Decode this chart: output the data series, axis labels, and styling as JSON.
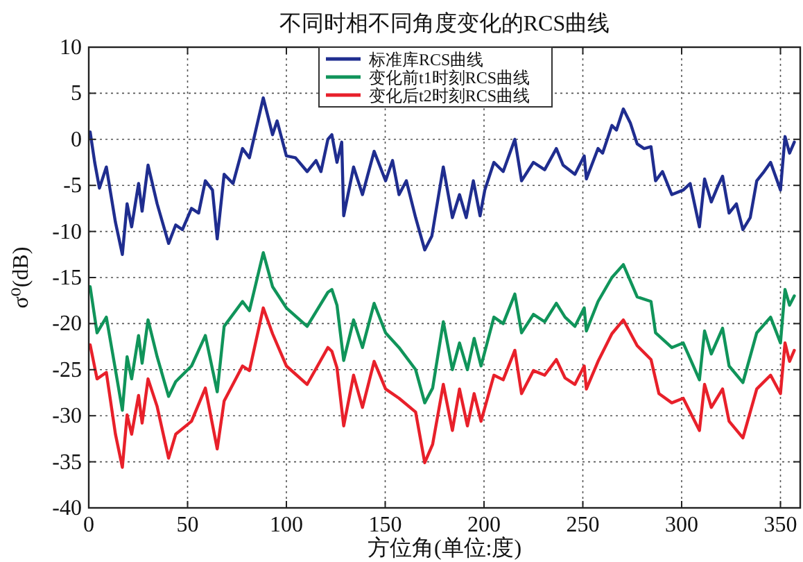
{
  "chart_data": {
    "type": "line",
    "title": "不同时相不同角度变化的RCS曲线",
    "xlabel": "方位角(单位:度)",
    "ylabel": "σ⁰(dB)",
    "xlim": [
      0,
      360
    ],
    "xticks": [
      0,
      50,
      100,
      150,
      200,
      250,
      300,
      350
    ],
    "ylim": [
      -40,
      10
    ],
    "yticks": [
      -40,
      -35,
      -30,
      -25,
      -20,
      -15,
      -10,
      -5,
      0,
      5,
      10
    ],
    "grid": true,
    "legend": "top",
    "line_style": "solid",
    "marker": "none",
    "series": [
      {
        "name": "标准库RCS曲线",
        "color": "#1f2d8f",
        "x": [
          0.7,
          3,
          5.4,
          8.9,
          13.5,
          17,
          19.4,
          21.7,
          25.2,
          27,
          30,
          34.6,
          40.4,
          44,
          47.4,
          52,
          55.6,
          59,
          62.6,
          65,
          68.5,
          73,
          77.8,
          81.3,
          88.3,
          93,
          95.3,
          100,
          104.6,
          110.5,
          115,
          117.5,
          121,
          123,
          125.6,
          128,
          129,
          134,
          138.5,
          141,
          144.4,
          150.2,
          153.7,
          157,
          160.7,
          165.4,
          170,
          173.6,
          179.4,
          184,
          187.6,
          191,
          194.6,
          198,
          200.4,
          205,
          209.7,
          215.6,
          219,
          225,
          230.7,
          236.6,
          240,
          246,
          250.7,
          251.8,
          257.7,
          260,
          264.7,
          267,
          270.5,
          274,
          277.5,
          281,
          284.5,
          286.8,
          290.3,
          295,
          300.8,
          304.3,
          309,
          311.6,
          315,
          318.5,
          320.7,
          324,
          327.7,
          331,
          334.7,
          338,
          341.7,
          345,
          350,
          352.3,
          354.6,
          357
        ],
        "values": [
          0.8,
          -2.5,
          -5.3,
          -3,
          -9,
          -12.5,
          -7,
          -9.5,
          -4.8,
          -7.8,
          -2.8,
          -7,
          -11.3,
          -9.3,
          -9.8,
          -7.5,
          -8,
          -4.5,
          -5.5,
          -10.8,
          -3.8,
          -4.8,
          -1,
          -2,
          4.5,
          0.5,
          2,
          -1.8,
          -2,
          -3.5,
          -2.3,
          -3.5,
          0,
          0.5,
          -2.5,
          -0.3,
          -8.3,
          -3,
          -6,
          -4,
          -1.3,
          -4.5,
          -2.3,
          -6,
          -4.5,
          -8.5,
          -12,
          -10.5,
          -3,
          -8.5,
          -6,
          -8.5,
          -4.5,
          -8.3,
          -5.5,
          -2.5,
          -3.5,
          0,
          -4.5,
          -2.5,
          -3.3,
          -1,
          -2.8,
          -3.8,
          -1.8,
          -4.3,
          -1,
          -1.5,
          1.5,
          1,
          3.3,
          1.8,
          -0.5,
          -1,
          -0.8,
          -4.5,
          -3.5,
          -6,
          -5.5,
          -4.8,
          -9.5,
          -4.3,
          -6.8,
          -5,
          -4,
          -8,
          -7,
          -9.8,
          -8.5,
          -4.5,
          -3.5,
          -2.5,
          -5.5,
          0.3,
          -1.5,
          -0.3
        ]
      },
      {
        "name": "变化前t1时刻RCS曲线",
        "color": "#10945a",
        "x": [
          0.7,
          4.2,
          8.9,
          13.5,
          17,
          19.4,
          21.7,
          25.2,
          27,
          30,
          34.6,
          40.4,
          44,
          52,
          59,
          65,
          68.5,
          77.8,
          81.3,
          88.3,
          93,
          100,
          110.5,
          121,
          123,
          125.6,
          129,
          134,
          138.5,
          144.4,
          150.2,
          157,
          165.4,
          170,
          174,
          179.4,
          184,
          187.6,
          191.6,
          195,
          198.5,
          205,
          209.7,
          215.6,
          219,
          225,
          230.7,
          236.6,
          241,
          246,
          250.7,
          251.8,
          257.7,
          264.7,
          270.5,
          277.5,
          284.5,
          286.8,
          295,
          300.8,
          309,
          311.6,
          315,
          320.7,
          324,
          331,
          338,
          345,
          350,
          352.3,
          354.6,
          357
        ],
        "values": [
          -16,
          -21,
          -19.3,
          -25,
          -29.4,
          -23.6,
          -26,
          -21.3,
          -24.3,
          -19.6,
          -23.6,
          -27.9,
          -26.3,
          -24.6,
          -21.3,
          -27.4,
          -20.3,
          -17.6,
          -18.6,
          -12.3,
          -16,
          -18.3,
          -20.3,
          -16.6,
          -16.3,
          -18,
          -24,
          -19.6,
          -22.6,
          -17.8,
          -21,
          -22.6,
          -25,
          -28.6,
          -27,
          -19.8,
          -25,
          -22.1,
          -25,
          -21.6,
          -24.6,
          -19.3,
          -20,
          -16.8,
          -21,
          -19,
          -19.8,
          -17.8,
          -19.3,
          -20.3,
          -18.3,
          -20.8,
          -17.6,
          -15,
          -13.6,
          -17.1,
          -17.6,
          -21,
          -22.6,
          -22.1,
          -26.1,
          -20.8,
          -23.3,
          -20.5,
          -24.6,
          -26.4,
          -21,
          -19.3,
          -22.1,
          -16.3,
          -18,
          -17
        ]
      },
      {
        "name": "变化后t2时刻RCS曲线",
        "color": "#e8202a",
        "x": [
          0.7,
          4.2,
          8.9,
          13.5,
          17,
          19.4,
          21.7,
          25.2,
          27,
          30,
          34.6,
          40.4,
          44,
          52,
          59,
          65,
          68.5,
          77.8,
          81.3,
          88.3,
          93,
          100,
          110.5,
          121,
          123,
          125.6,
          129,
          134,
          138.5,
          144.4,
          150.2,
          157,
          165.4,
          170,
          174,
          179.4,
          184,
          187.6,
          191.6,
          195,
          198.5,
          205,
          209.7,
          215.6,
          219,
          225,
          230.7,
          236.6,
          241,
          246,
          250.7,
          251.8,
          257.7,
          264.7,
          270.5,
          277.5,
          284.5,
          288.5,
          295,
          300.8,
          309,
          311.6,
          315,
          320.7,
          324,
          331,
          338,
          345,
          350,
          352.3,
          354.6,
          357
        ],
        "values": [
          -22.3,
          -26,
          -25.3,
          -32,
          -35.6,
          -29.9,
          -32,
          -27.8,
          -30.8,
          -26,
          -29,
          -34.6,
          -32,
          -30.6,
          -27,
          -33.6,
          -28.4,
          -24.6,
          -25.1,
          -18.3,
          -21.1,
          -24.6,
          -26.6,
          -22.6,
          -23,
          -24.8,
          -31.1,
          -25.6,
          -29.1,
          -24.1,
          -27.1,
          -28.1,
          -29.6,
          -35.1,
          -33.1,
          -26.6,
          -31.6,
          -27.1,
          -31.1,
          -27.6,
          -30.6,
          -25.6,
          -26.1,
          -22.9,
          -27.6,
          -25.1,
          -25.6,
          -23.9,
          -25.9,
          -26.6,
          -24.6,
          -27.1,
          -24.1,
          -21.1,
          -19.6,
          -22.4,
          -23.9,
          -27.6,
          -28.6,
          -28.1,
          -31.6,
          -26.6,
          -29.1,
          -27.1,
          -30.6,
          -32.4,
          -27.1,
          -25.6,
          -27.6,
          -22.1,
          -24.1,
          -22.9
        ]
      }
    ]
  }
}
